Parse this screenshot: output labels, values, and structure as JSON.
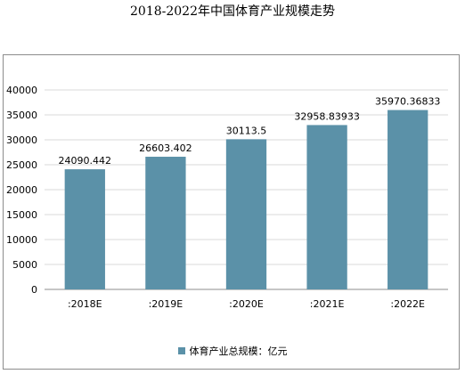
{
  "chart_data": {
    "type": "bar",
    "title": "2018-2022年中国体育产业规模走势",
    "categories": [
      ":2018E",
      ":2019E",
      ":2020E",
      ":2021E",
      ":2022E"
    ],
    "series": [
      {
        "name": "体育产业总规模：亿元",
        "values": [
          24090.442,
          26603.402,
          30113.5,
          32958.83933,
          35970.36833
        ],
        "labels": [
          "24090.442",
          "26603.402",
          "30113.5",
          "32958.83933",
          "35970.36833"
        ],
        "color": "#5b91a8"
      }
    ],
    "ylim": [
      0,
      40000
    ],
    "yticks": [
      "0",
      "5000",
      "10000",
      "15000",
      "20000",
      "25000",
      "30000",
      "35000",
      "40000"
    ],
    "grid": true,
    "legend": "bottom"
  }
}
